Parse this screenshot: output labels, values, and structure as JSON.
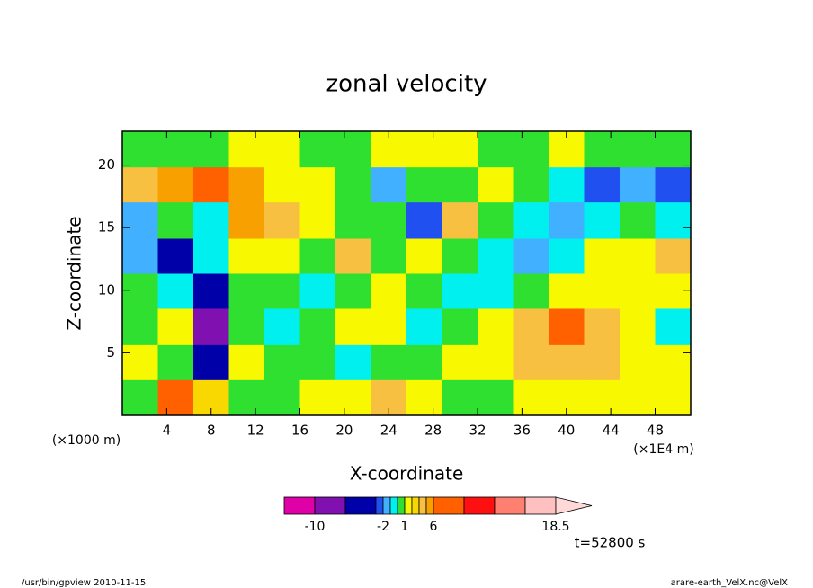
{
  "chart_data": {
    "type": "contour",
    "title": "zonal velocity",
    "x_label": "X-coordinate",
    "y_label": "Z-coordinate",
    "x_unit": "(×1E4 m)",
    "y_unit": "(×1000 m)",
    "time_label": "t=52800 s",
    "footer_left": "/usr/bin/gpview  2010-11-15",
    "footer_right": "arare-earth_VelX.nc@VelX",
    "xlim": [
      0,
      51.2
    ],
    "ylim": [
      0,
      22.7
    ],
    "xticks": [
      4,
      8,
      12,
      16,
      20,
      24,
      28,
      32,
      36,
      40,
      44,
      48
    ],
    "yticks": [
      5,
      10,
      15,
      20
    ],
    "x": [
      1.6,
      4.8,
      8,
      11.2,
      14.4,
      17.6,
      20.8,
      24,
      27.2,
      30.4,
      33.6,
      36.8,
      40,
      43.2,
      46.4,
      49.6
    ],
    "z": [
      1.4,
      4.3,
      7.1,
      10,
      12.8,
      15.6,
      18.5,
      21.3
    ],
    "values": [
      [
        0.5,
        7,
        2,
        0.5,
        0.5,
        1.5,
        1.5,
        3.5,
        1.5,
        0.5,
        0.5,
        1.5,
        1.5,
        1.5,
        1.5,
        1.5
      ],
      [
        1.5,
        0.5,
        -4,
        1.5,
        0.5,
        0.5,
        -0.5,
        0.5,
        0.5,
        1.5,
        1.5,
        3.5,
        3.5,
        3.5,
        1.5,
        1.5
      ],
      [
        0.5,
        1.5,
        -8,
        0.5,
        -0.5,
        0.5,
        1.5,
        1.5,
        -0.5,
        0.5,
        1.5,
        3.5,
        7,
        3.5,
        1.5,
        -0.5
      ],
      [
        0.5,
        -0.5,
        -5,
        0.5,
        0.5,
        -0.5,
        0.5,
        1.5,
        0.5,
        -0.5,
        -0.5,
        0.5,
        1.5,
        1.5,
        1.5,
        1.5
      ],
      [
        -1.5,
        -4,
        -0.5,
        1.5,
        1.5,
        0.5,
        3.5,
        0.5,
        1.5,
        0.5,
        -0.5,
        -1.5,
        -0.5,
        1.5,
        1.5,
        3.5
      ],
      [
        -1.5,
        0.5,
        -0.5,
        5,
        3.5,
        1.5,
        0.5,
        0.5,
        -2.5,
        3.5,
        0.5,
        -0.5,
        -1.5,
        -0.5,
        0.5,
        -0.5
      ],
      [
        3.5,
        5,
        7,
        5,
        1.5,
        1.5,
        0.5,
        -1.5,
        0.5,
        0.5,
        1.5,
        0.5,
        -0.5,
        -2.5,
        -1.5,
        -2.5
      ],
      [
        0.5,
        0.5,
        0.5,
        1.5,
        1.5,
        0.5,
        0.5,
        1.5,
        1.5,
        1.5,
        0.5,
        0.5,
        1.5,
        0.5,
        0.5,
        0.5
      ]
    ],
    "levels": [
      -14,
      -10,
      -6,
      -3,
      -2,
      -1,
      0,
      1,
      2,
      3,
      4,
      6,
      9,
      12,
      15,
      18.5
    ],
    "colors": [
      "#e000a8",
      "#8010b0",
      "#0000a8",
      "#2050f0",
      "#40b0ff",
      "#00f0f0",
      "#30e030",
      "#f8f800",
      "#f8d800",
      "#f8c040",
      "#f8a000",
      "#ff6000",
      "#ff1010",
      "#ff8070",
      "#ffc0c0"
    ],
    "over_color": "#ffd8d8",
    "colorbar_ticks": [
      -10,
      -2,
      1,
      6,
      18.5
    ]
  }
}
